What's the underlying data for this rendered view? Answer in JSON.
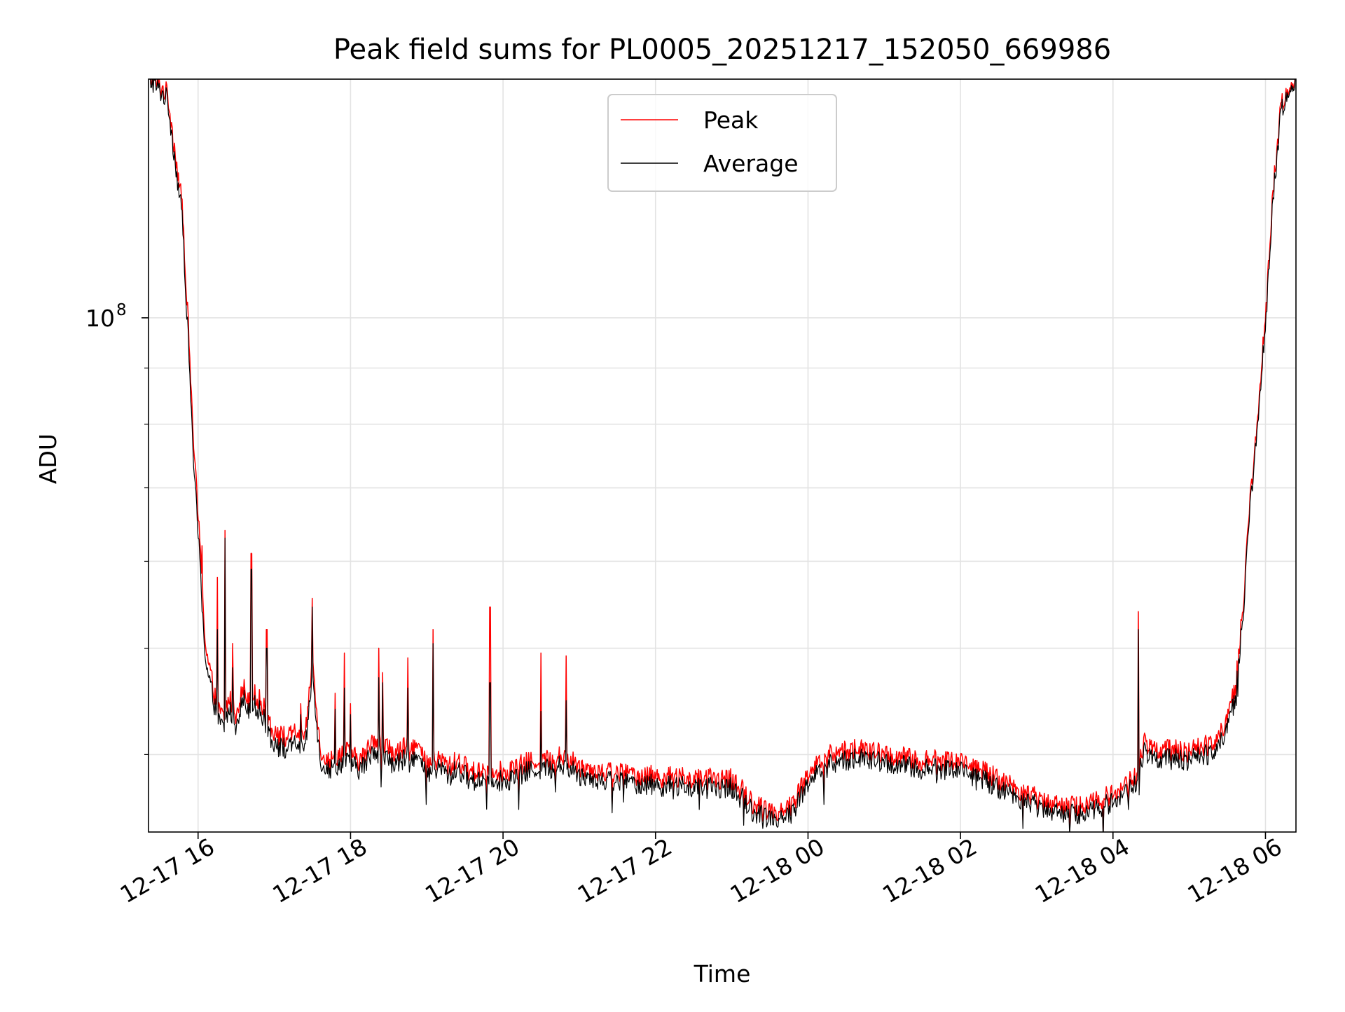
{
  "chart_data": {
    "type": "line",
    "title": "Peak field sums for PL0005_20251217_152050_669986",
    "xlabel": "Time",
    "ylabel": "ADU",
    "yscale": "log",
    "ylim": [
      34000000,
      165000000
    ],
    "xlim_hours": [
      15.35,
      30.4
    ],
    "x_unit": "hours since 12-17 00:00",
    "grid": true,
    "legend_position": "top-center",
    "x_ticks": [
      {
        "hours": 16,
        "label": "12-17 16"
      },
      {
        "hours": 18,
        "label": "12-17 18"
      },
      {
        "hours": 20,
        "label": "12-17 20"
      },
      {
        "hours": 22,
        "label": "12-17 22"
      },
      {
        "hours": 24,
        "label": "12-18 00"
      },
      {
        "hours": 26,
        "label": "12-18 02"
      },
      {
        "hours": 28,
        "label": "12-18 04"
      },
      {
        "hours": 30,
        "label": "12-18 06"
      }
    ],
    "y_major_ticks": [
      {
        "value": 100000000,
        "label_base": "10",
        "label_exp": "8"
      }
    ],
    "y_minor_ticks": [
      40000000,
      50000000,
      60000000,
      70000000,
      80000000,
      90000000,
      200000000
    ],
    "series": [
      {
        "name": "Peak",
        "color": "#ff0000",
        "x": [
          15.4,
          15.6,
          15.8,
          15.95,
          16.05,
          16.1,
          16.2,
          16.25,
          16.3,
          16.35,
          16.4,
          16.5,
          16.6,
          16.65,
          16.7,
          16.8,
          16.9,
          17.0,
          17.1,
          17.2,
          17.3,
          17.4,
          17.5,
          17.6,
          17.7,
          17.8,
          17.9,
          18.0,
          18.1,
          18.2,
          18.3,
          18.4,
          18.5,
          18.6,
          18.7,
          18.8,
          18.9,
          19.0,
          19.1,
          19.2,
          19.3,
          19.4,
          19.6,
          19.8,
          20.0,
          20.2,
          20.4,
          20.6,
          20.8,
          21.0,
          21.5,
          22.0,
          22.5,
          23.0,
          23.3,
          23.6,
          23.8,
          24.0,
          24.3,
          24.6,
          25.0,
          25.5,
          26.0,
          26.5,
          27.0,
          27.5,
          28.0,
          28.3,
          28.4,
          28.6,
          29.0,
          29.3,
          29.5,
          29.6,
          29.7,
          29.8,
          29.9,
          30.0,
          30.1,
          30.2,
          30.3,
          30.4
        ],
        "y": [
          165000000,
          160000000,
          125000000,
          75000000,
          58000000,
          50000000,
          46000000,
          44000000,
          43500000,
          43500000,
          45000000,
          44000000,
          46000000,
          45000000,
          45500000,
          45000000,
          43500000,
          42000000,
          41500000,
          41500000,
          42000000,
          41000000,
          49000000,
          40500000,
          39500000,
          39500000,
          40500000,
          40000000,
          39500000,
          40000000,
          41500000,
          41000000,
          40500000,
          40000000,
          40500000,
          41000000,
          40500000,
          39000000,
          39500000,
          39500000,
          39000000,
          39500000,
          38500000,
          39000000,
          38500000,
          39000000,
          39500000,
          39500000,
          40000000,
          39000000,
          38500000,
          38200000,
          38000000,
          38000000,
          36000000,
          35500000,
          36000000,
          38500000,
          40000000,
          40500000,
          40000000,
          39500000,
          39500000,
          38000000,
          36500000,
          35800000,
          36800000,
          38200000,
          41000000,
          40500000,
          40200000,
          41000000,
          43000000,
          46000000,
          54000000,
          68000000,
          82000000,
          100000000,
          130000000,
          155000000,
          163000000,
          165000000
        ],
        "spikes": [
          {
            "x": 16.05,
            "y": 62000000
          },
          {
            "x": 16.25,
            "y": 58000000
          },
          {
            "x": 16.35,
            "y": 64000000
          },
          {
            "x": 16.45,
            "y": 50500000
          },
          {
            "x": 16.7,
            "y": 61000000
          },
          {
            "x": 16.9,
            "y": 52000000
          },
          {
            "x": 17.35,
            "y": 44500000
          },
          {
            "x": 17.5,
            "y": 55500000
          },
          {
            "x": 17.8,
            "y": 45500000
          },
          {
            "x": 17.92,
            "y": 49500000
          },
          {
            "x": 18.0,
            "y": 44500000
          },
          {
            "x": 18.37,
            "y": 50000000
          },
          {
            "x": 18.42,
            "y": 47500000
          },
          {
            "x": 18.75,
            "y": 49000000
          },
          {
            "x": 19.08,
            "y": 52000000
          },
          {
            "x": 19.83,
            "y": 54500000
          },
          {
            "x": 20.5,
            "y": 49500000
          },
          {
            "x": 20.83,
            "y": 49200000
          },
          {
            "x": 28.33,
            "y": 54000000
          }
        ]
      },
      {
        "name": "Average",
        "color": "#000000",
        "x": [
          15.4,
          15.6,
          15.8,
          15.95,
          16.05,
          16.1,
          16.2,
          16.25,
          16.3,
          16.35,
          16.4,
          16.5,
          16.6,
          16.65,
          16.7,
          16.8,
          16.9,
          17.0,
          17.1,
          17.2,
          17.3,
          17.4,
          17.5,
          17.6,
          17.7,
          17.8,
          17.9,
          18.0,
          18.1,
          18.2,
          18.3,
          18.4,
          18.5,
          18.6,
          18.7,
          18.8,
          18.9,
          19.0,
          19.1,
          19.2,
          19.3,
          19.4,
          19.6,
          19.8,
          20.0,
          20.2,
          20.4,
          20.6,
          20.8,
          21.0,
          21.5,
          22.0,
          22.5,
          23.0,
          23.3,
          23.6,
          23.8,
          24.0,
          24.3,
          24.6,
          25.0,
          25.5,
          26.0,
          26.5,
          27.0,
          27.5,
          28.0,
          28.3,
          28.4,
          28.6,
          29.0,
          29.3,
          29.5,
          29.6,
          29.7,
          29.8,
          29.9,
          30.0,
          30.1,
          30.2,
          30.3,
          30.4
        ],
        "y": [
          164000000,
          158000000,
          122000000,
          72000000,
          56000000,
          48500000,
          45000000,
          43000000,
          42500000,
          42500000,
          44000000,
          43000000,
          45000000,
          44000000,
          44500000,
          44000000,
          42500000,
          41000000,
          40500000,
          40500000,
          41000000,
          40000000,
          47500000,
          39500000,
          38800000,
          38800000,
          39500000,
          39200000,
          38800000,
          39200000,
          40500000,
          40000000,
          39500000,
          39200000,
          39500000,
          40000000,
          39500000,
          38200000,
          38800000,
          38800000,
          38200000,
          38800000,
          37800000,
          38200000,
          37800000,
          38200000,
          38800000,
          38800000,
          39200000,
          38300000,
          37800000,
          37500000,
          37300000,
          37300000,
          35400000,
          35000000,
          35400000,
          37800000,
          39200000,
          39700000,
          39300000,
          38800000,
          38800000,
          37300000,
          35900000,
          35200000,
          36200000,
          37600000,
          40200000,
          39700000,
          39500000,
          40200000,
          42200000,
          45000000,
          53000000,
          67000000,
          81000000,
          98000000,
          128000000,
          153000000,
          162000000,
          164000000
        ],
        "spikes": [
          {
            "x": 16.05,
            "y": 54000000
          },
          {
            "x": 16.25,
            "y": 52000000
          },
          {
            "x": 16.35,
            "y": 63000000
          },
          {
            "x": 16.45,
            "y": 48000000
          },
          {
            "x": 16.7,
            "y": 59000000
          },
          {
            "x": 16.9,
            "y": 50000000
          },
          {
            "x": 17.35,
            "y": 43500000
          },
          {
            "x": 17.5,
            "y": 54500000
          },
          {
            "x": 17.8,
            "y": 44000000
          },
          {
            "x": 17.92,
            "y": 46000000
          },
          {
            "x": 18.0,
            "y": 43500000
          },
          {
            "x": 18.37,
            "y": 47000000
          },
          {
            "x": 18.42,
            "y": 46500000
          },
          {
            "x": 18.75,
            "y": 46000000
          },
          {
            "x": 19.08,
            "y": 50500000
          },
          {
            "x": 19.83,
            "y": 46500000
          },
          {
            "x": 20.5,
            "y": 43800000
          },
          {
            "x": 20.83,
            "y": 44800000
          },
          {
            "x": 28.33,
            "y": 52000000
          }
        ]
      }
    ]
  }
}
